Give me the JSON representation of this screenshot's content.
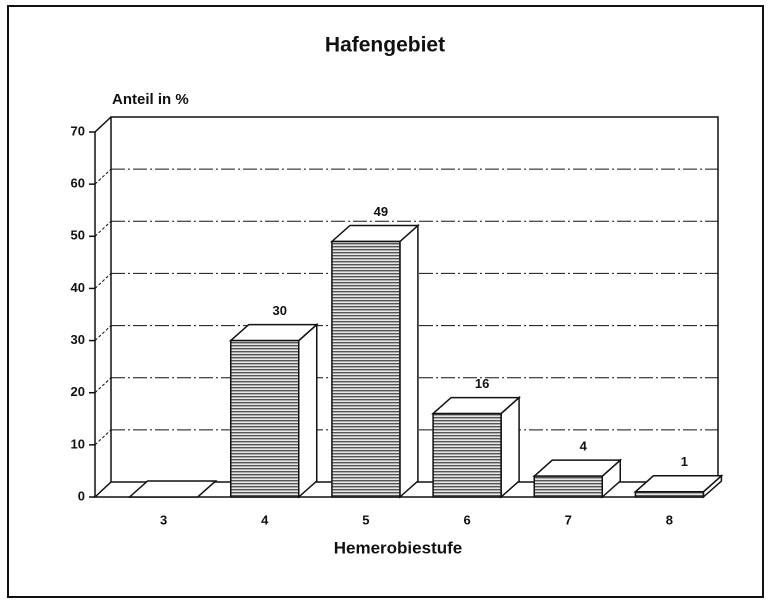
{
  "chart_data": {
    "type": "bar3d",
    "title": "Hafengebiet",
    "y_label": "Anteil in %",
    "x_label": "Hemerobiestufe",
    "categories": [
      "3",
      "4",
      "5",
      "6",
      "7",
      "8"
    ],
    "values": [
      0,
      30,
      49,
      16,
      4,
      1
    ],
    "color": "#9a9a9a",
    "ylim": [
      0,
      70
    ],
    "yticks": [
      0,
      10,
      20,
      30,
      40,
      50,
      60,
      70
    ],
    "grid": true
  }
}
